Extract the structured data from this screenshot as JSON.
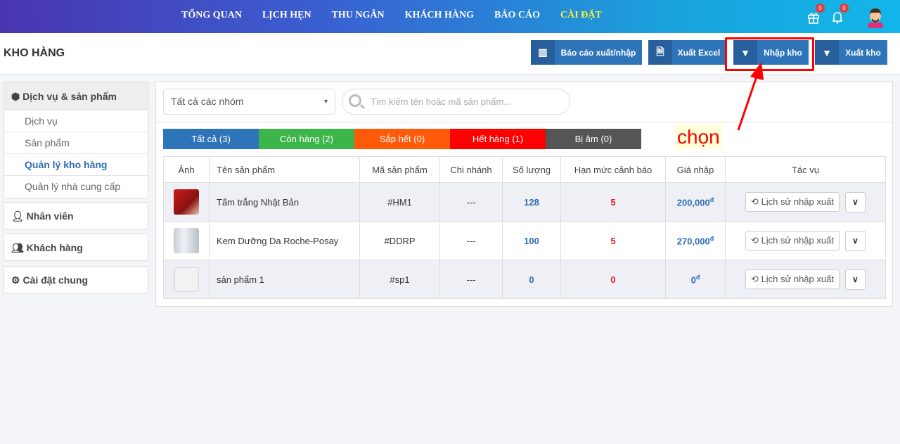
{
  "nav": {
    "items": [
      "TỔNG QUAN",
      "LỊCH HẸN",
      "THU NGÂN",
      "KHÁCH HÀNG",
      "BÁO CÁO",
      "CÀI ĐẶT"
    ],
    "active": "CÀI ĐẶT",
    "gift_count": "0",
    "bell_count": "0"
  },
  "page": {
    "title": "KHO HÀNG"
  },
  "toolbar": {
    "report": "Báo cáo xuất/nhập",
    "excel": "Xuất Excel",
    "import": "Nhập kho",
    "export": "Xuất kho"
  },
  "sidebar": {
    "group1": "Dịch vụ & sản phẩm",
    "items": [
      "Dịch vụ",
      "Sản phẩm",
      "Quản lý kho hàng",
      "Quản lý nhà cung cấp"
    ],
    "active": "Quản lý kho hàng",
    "staff": "Nhân viên",
    "customers": "Khách hàng",
    "settings": "Cài đặt chung"
  },
  "filters": {
    "group_select": "Tất cả các nhóm",
    "search_placeholder": "Tìm kiếm tên hoặc mã sản phẩm..."
  },
  "tabs": [
    {
      "label": "Tất cả (3)",
      "color": "#2e74b8"
    },
    {
      "label": "Còn hàng (2)",
      "color": "#3cb54a"
    },
    {
      "label": "Sắp hết (0)",
      "color": "#ff5a0a"
    },
    {
      "label": "Hết hàng (1)",
      "color": "#ff0000"
    },
    {
      "label": "Bị âm (0)",
      "color": "#555555"
    }
  ],
  "table": {
    "headers": [
      "Ảnh",
      "Tên sản phẩm",
      "Mã sản phẩm",
      "Chi nhánh",
      "Số lượng",
      "Hạn mức cảnh báo",
      "Giá nhập",
      "Tác vụ"
    ],
    "rows": [
      {
        "name": "Tấm trắng Nhật Bản",
        "code": "#HM1",
        "branch": "---",
        "qty": "128",
        "limit": "5",
        "price": "200,000",
        "currency": "đ",
        "history": "Lịch sử nhập xuất"
      },
      {
        "name": "Kem Dưỡng Da Roche-Posay",
        "code": "#DDRP",
        "branch": "---",
        "qty": "100",
        "limit": "5",
        "price": "270,000",
        "currency": "đ",
        "history": "Lịch sử nhập xuất"
      },
      {
        "name": "sản phẩm 1",
        "code": "#sp1",
        "branch": "---",
        "qty": "0",
        "limit": "0",
        "price": "0",
        "currency": "đ",
        "history": "Lịch sử nhập xuất"
      }
    ]
  },
  "annotation": {
    "text": "chọn",
    "color": "#ff0000"
  }
}
